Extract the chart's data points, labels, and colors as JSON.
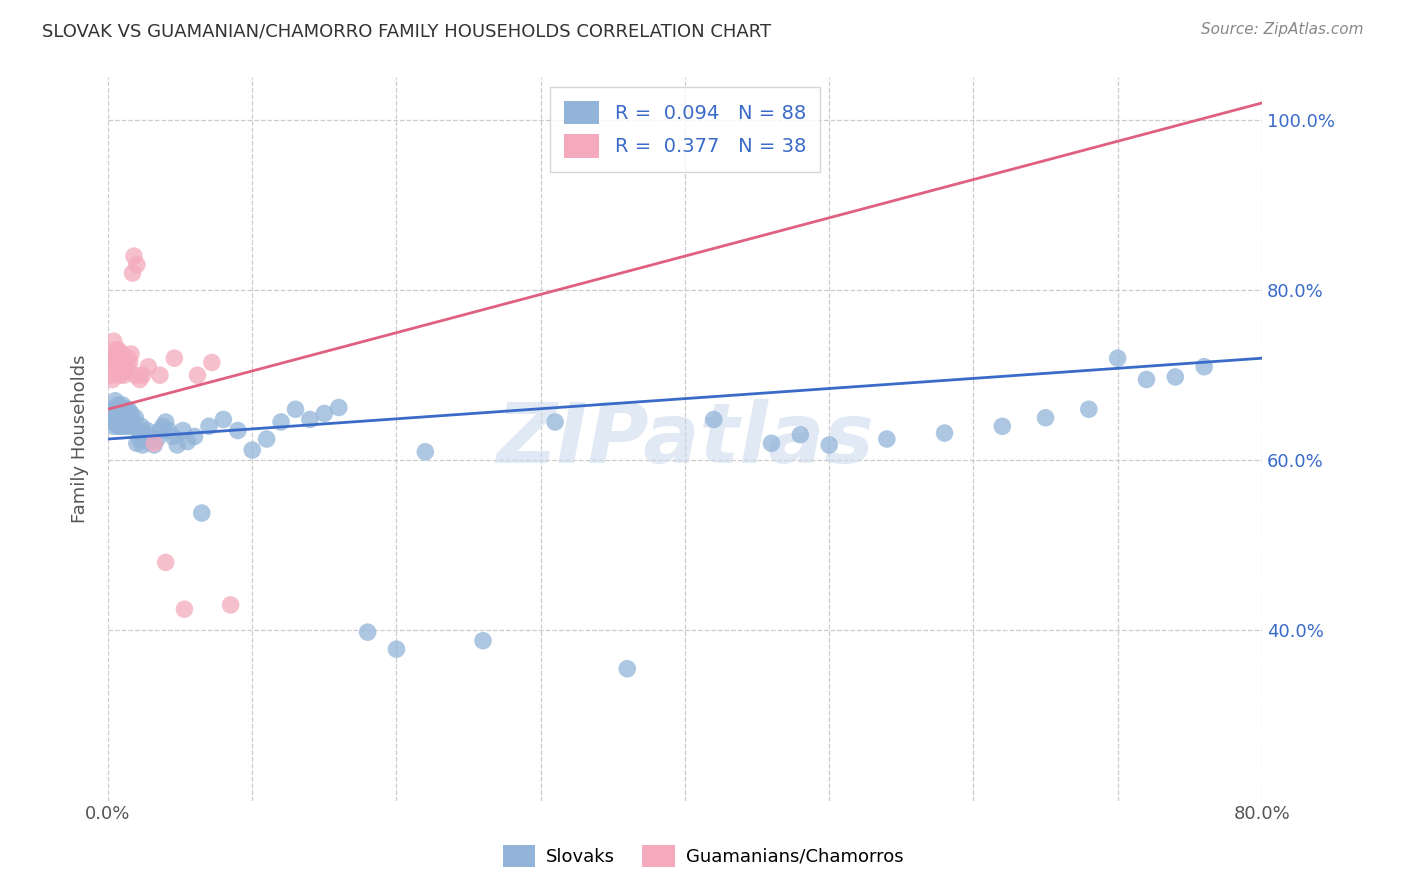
{
  "title": "SLOVAK VS GUAMANIAN/CHAMORRO FAMILY HOUSEHOLDS CORRELATION CHART",
  "source": "Source: ZipAtlas.com",
  "ylabel": "Family Households",
  "color_blue": "#92B4D8",
  "color_pink": "#F4AABC",
  "line_blue": "#3A6BC8",
  "line_pink": "#E06080",
  "watermark": "ZIPatlas",
  "xlim": [
    0.0,
    0.8
  ],
  "ylim": [
    0.2,
    1.05
  ],
  "blue_scatter_x": [
    0.002,
    0.003,
    0.003,
    0.004,
    0.004,
    0.005,
    0.005,
    0.005,
    0.006,
    0.006,
    0.006,
    0.007,
    0.007,
    0.007,
    0.008,
    0.008,
    0.008,
    0.009,
    0.009,
    0.01,
    0.01,
    0.01,
    0.01,
    0.011,
    0.011,
    0.012,
    0.012,
    0.013,
    0.013,
    0.014,
    0.014,
    0.015,
    0.015,
    0.016,
    0.017,
    0.018,
    0.019,
    0.02,
    0.021,
    0.022,
    0.023,
    0.024,
    0.025,
    0.026,
    0.027,
    0.028,
    0.03,
    0.032,
    0.034,
    0.036,
    0.038,
    0.04,
    0.042,
    0.045,
    0.048,
    0.052,
    0.055,
    0.06,
    0.065,
    0.07,
    0.08,
    0.09,
    0.1,
    0.11,
    0.12,
    0.13,
    0.14,
    0.15,
    0.16,
    0.18,
    0.2,
    0.22,
    0.26,
    0.31,
    0.36,
    0.42,
    0.46,
    0.48,
    0.5,
    0.54,
    0.58,
    0.62,
    0.65,
    0.68,
    0.7,
    0.72,
    0.74,
    0.76
  ],
  "blue_scatter_y": [
    0.65,
    0.645,
    0.66,
    0.655,
    0.64,
    0.66,
    0.65,
    0.67,
    0.645,
    0.66,
    0.655,
    0.65,
    0.64,
    0.665,
    0.655,
    0.645,
    0.66,
    0.64,
    0.655,
    0.65,
    0.64,
    0.66,
    0.665,
    0.65,
    0.645,
    0.64,
    0.66,
    0.645,
    0.655,
    0.64,
    0.66,
    0.645,
    0.65,
    0.655,
    0.64,
    0.645,
    0.65,
    0.62,
    0.635,
    0.625,
    0.64,
    0.618,
    0.632,
    0.628,
    0.635,
    0.622,
    0.628,
    0.618,
    0.625,
    0.635,
    0.64,
    0.645,
    0.635,
    0.628,
    0.618,
    0.635,
    0.622,
    0.628,
    0.538,
    0.64,
    0.648,
    0.635,
    0.612,
    0.625,
    0.645,
    0.66,
    0.648,
    0.655,
    0.662,
    0.398,
    0.378,
    0.61,
    0.388,
    0.645,
    0.355,
    0.648,
    0.62,
    0.63,
    0.618,
    0.625,
    0.632,
    0.64,
    0.65,
    0.66,
    0.72,
    0.695,
    0.698,
    0.71
  ],
  "pink_scatter_x": [
    0.002,
    0.003,
    0.003,
    0.004,
    0.004,
    0.005,
    0.005,
    0.006,
    0.006,
    0.007,
    0.007,
    0.008,
    0.008,
    0.009,
    0.009,
    0.01,
    0.01,
    0.011,
    0.012,
    0.013,
    0.014,
    0.015,
    0.016,
    0.017,
    0.018,
    0.019,
    0.02,
    0.022,
    0.024,
    0.028,
    0.032,
    0.036,
    0.04,
    0.046,
    0.053,
    0.062,
    0.072,
    0.085
  ],
  "pink_scatter_y": [
    0.7,
    0.695,
    0.72,
    0.71,
    0.74,
    0.725,
    0.72,
    0.73,
    0.715,
    0.72,
    0.73,
    0.7,
    0.705,
    0.71,
    0.72,
    0.715,
    0.725,
    0.7,
    0.705,
    0.71,
    0.72,
    0.715,
    0.725,
    0.82,
    0.84,
    0.7,
    0.83,
    0.695,
    0.7,
    0.71,
    0.62,
    0.7,
    0.48,
    0.72,
    0.425,
    0.7,
    0.715,
    0.43
  ],
  "blue_line_x0": 0.0,
  "blue_line_x1": 0.8,
  "blue_line_y0": 0.625,
  "blue_line_y1": 0.72,
  "pink_line_x0": 0.0,
  "pink_line_x1": 0.8,
  "pink_line_y0": 0.66,
  "pink_line_y1": 1.02
}
